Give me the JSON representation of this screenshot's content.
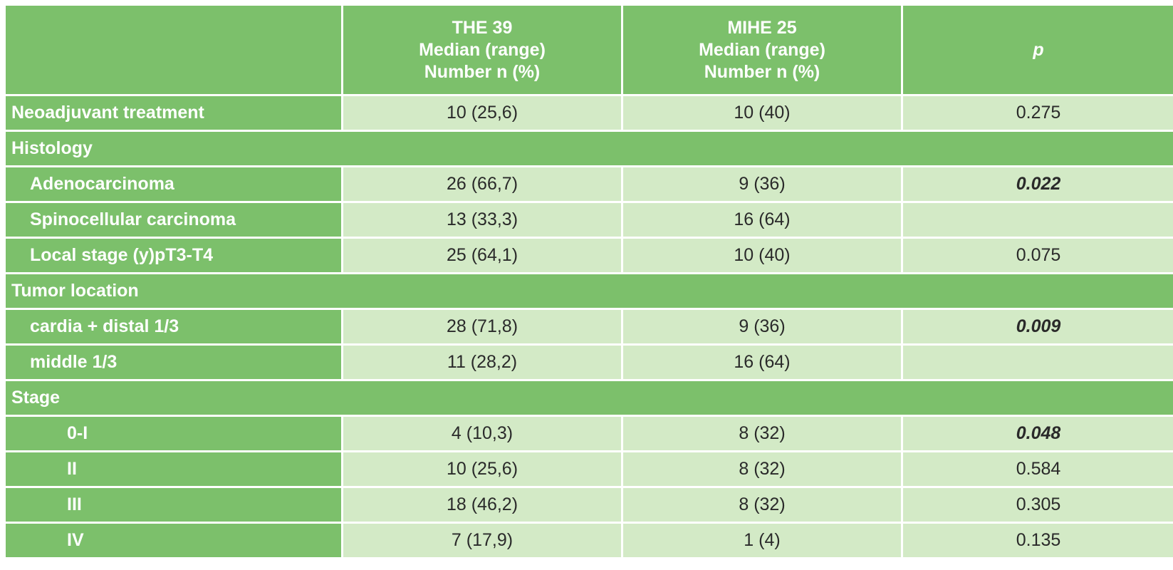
{
  "table": {
    "headers": [
      {
        "lines": []
      },
      {
        "lines": [
          "THE 39",
          "Median (range)",
          "Number n (%)"
        ]
      },
      {
        "lines": [
          "MIHE 25",
          "Median (range)",
          "Number n (%)"
        ]
      },
      {
        "lines": [
          "p"
        ]
      }
    ],
    "rows": [
      {
        "type": "item",
        "indent": 0,
        "label": "Neoadjuvant treatment",
        "the": "10 (25,6)",
        "mihe": "10 (40)",
        "p": "0.275",
        "p_significant": false
      },
      {
        "type": "section",
        "label": "Histology"
      },
      {
        "type": "item",
        "indent": 1,
        "label": "Adenocarcinoma",
        "the": "26 (66,7)",
        "mihe": "9 (36)",
        "p": "0.022",
        "p_significant": true
      },
      {
        "type": "item",
        "indent": 1,
        "label": "Spinocellular carcinoma",
        "the": "13 (33,3)",
        "mihe": "16 (64)",
        "p": "",
        "p_significant": false
      },
      {
        "type": "item",
        "indent": 1,
        "label": "Local stage (y)pT3-T4",
        "the": "25 (64,1)",
        "mihe": "10 (40)",
        "p": "0.075",
        "p_significant": false
      },
      {
        "type": "section",
        "label": "Tumor location"
      },
      {
        "type": "item",
        "indent": 1,
        "label": "cardia + distal 1/3",
        "the": "28 (71,8)",
        "mihe": "9 (36)",
        "p": "0.009",
        "p_significant": true
      },
      {
        "type": "item",
        "indent": 1,
        "label": "middle 1/3",
        "the": "11 (28,2)",
        "mihe": "16 (64)",
        "p": "",
        "p_significant": false
      },
      {
        "type": "section",
        "label": "Stage"
      },
      {
        "type": "item",
        "indent": 2,
        "label": "0-I",
        "the": "4 (10,3)",
        "mihe": "8 (32)",
        "p": "0.048",
        "p_significant": true
      },
      {
        "type": "item",
        "indent": 2,
        "label": "II",
        "the": "10 (25,6)",
        "mihe": "8 (32)",
        "p": "0.584",
        "p_significant": false
      },
      {
        "type": "item",
        "indent": 2,
        "label": "III",
        "the": "18 (46,2)",
        "mihe": "8 (32)",
        "p": "0.305",
        "p_significant": false
      },
      {
        "type": "item",
        "indent": 2,
        "label": "IV",
        "the": "7 (17,9)",
        "mihe": "1 (4)",
        "p": "0.135",
        "p_significant": false
      }
    ]
  },
  "colors": {
    "header_green": "#7cc06b",
    "cell_light_green": "#d3eac6",
    "text_dark": "#2a2a2a",
    "text_white": "#ffffff"
  }
}
